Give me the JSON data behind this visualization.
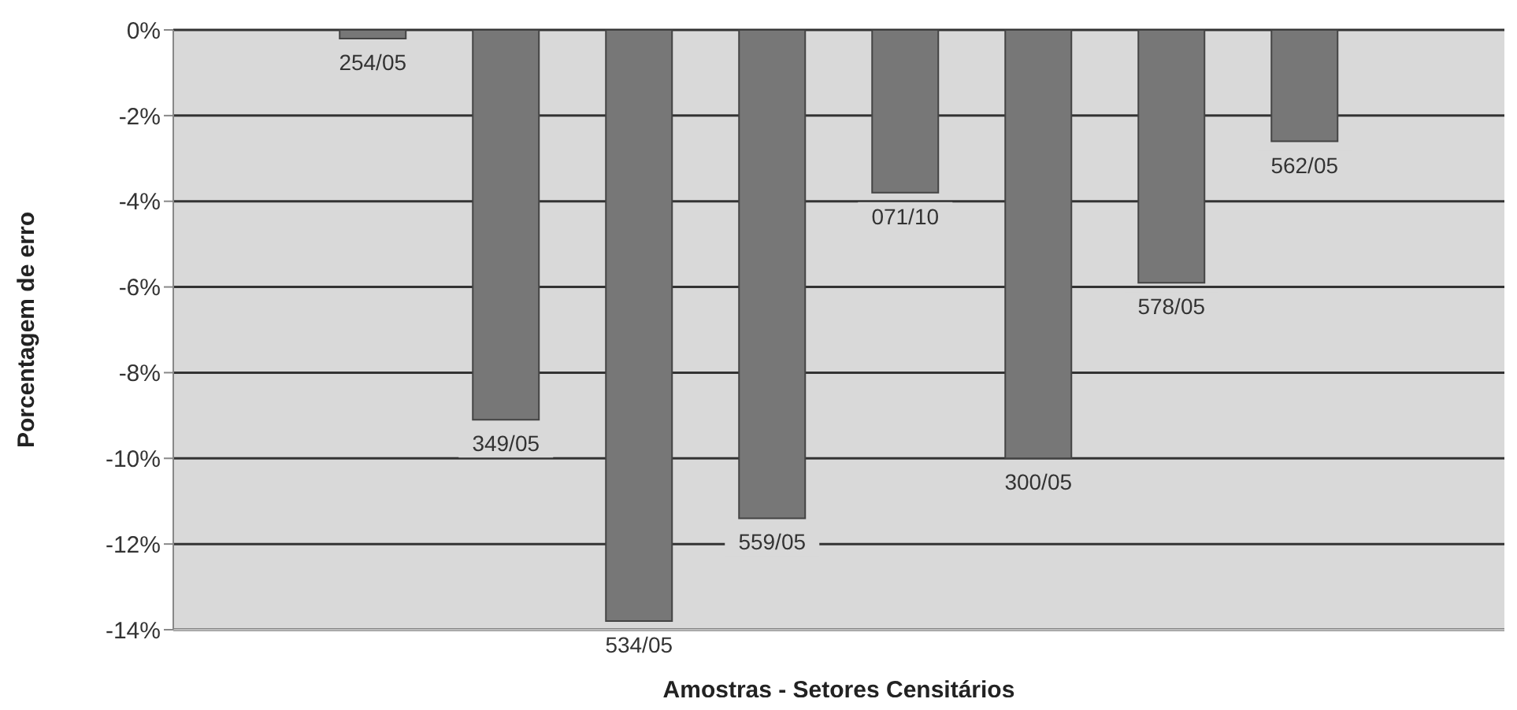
{
  "chart_data": {
    "type": "bar",
    "xlabel": "Amostras - Setores Censitários",
    "ylabel": "Porcentagem de erro",
    "categories": [
      null,
      "254/05",
      "349/05",
      "534/05",
      "559/05",
      "071/10",
      "300/05",
      "578/05",
      "562/05",
      null
    ],
    "values": [
      null,
      -0.2,
      -9.1,
      -13.8,
      -11.4,
      -3.8,
      -10.0,
      -5.9,
      -2.6,
      null
    ],
    "color": "#777777",
    "ylim": [
      -14,
      0
    ],
    "yticks": [
      {
        "value": -14,
        "label": "-14%"
      },
      {
        "value": -12,
        "label": "-12%"
      },
      {
        "value": -10,
        "label": "-10%"
      },
      {
        "value": -8,
        "label": "-8%"
      },
      {
        "value": -6,
        "label": "-6%"
      },
      {
        "value": -4,
        "label": "-4%"
      },
      {
        "value": -2,
        "label": "-2%"
      },
      {
        "value": 0,
        "label": "0%"
      }
    ],
    "grid": "y",
    "tick_labels": "y"
  }
}
